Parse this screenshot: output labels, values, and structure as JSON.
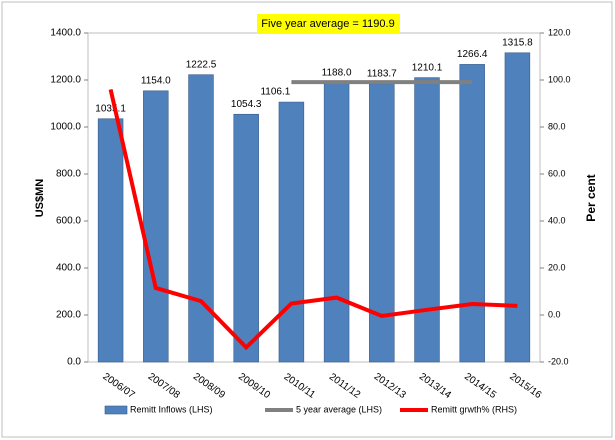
{
  "chart_data": {
    "type": "bar",
    "annotation": "Five year average = 1190.9",
    "ylabel": "US$MN",
    "y2label": "Per cent",
    "categories": [
      "2006/07",
      "2007/08",
      "2008/09",
      "2009/10",
      "2010/11",
      "2011/12",
      "2012/13",
      "2013/14",
      "2014/15",
      "2015/16"
    ],
    "series": [
      {
        "name": "Remitt Inflows (LHS)",
        "color": "#4f81bd",
        "kind": "bar",
        "values": [
          1035.1,
          1154.0,
          1222.5,
          1054.3,
          1106.1,
          1188.0,
          1183.7,
          1210.1,
          1266.4,
          1315.8
        ],
        "value_labels": [
          "1035.1",
          "1154.0",
          "1222.5",
          "1054.3",
          "1106.1",
          "1188.0",
          "1183.7",
          "1210.1",
          "1266.4",
          "1315.8"
        ]
      },
      {
        "name": "5 year average (LHS)",
        "color": "#808080",
        "kind": "line",
        "values": [
          null,
          null,
          null,
          null,
          1190.9,
          1190.9,
          1190.9,
          1190.9,
          1190.9,
          null
        ]
      },
      {
        "name": "Remitt grwth% (RHS)",
        "color": "#ff0000",
        "kind": "line",
        "axis": "y2",
        "values": [
          96,
          11.5,
          5.9,
          -13.8,
          4.9,
          7.4,
          -0.4,
          2.2,
          4.7,
          3.9
        ]
      }
    ],
    "ylim": [
      0,
      1400
    ],
    "yticks": [
      {
        "value": 0,
        "label": "0.0"
      },
      {
        "value": 200,
        "label": "200.0"
      },
      {
        "value": 400,
        "label": "400.0"
      },
      {
        "value": 600,
        "label": "600.0"
      },
      {
        "value": 800,
        "label": "800.0"
      },
      {
        "value": 1000,
        "label": "1000.0"
      },
      {
        "value": 1200,
        "label": "1200.0"
      },
      {
        "value": 1400,
        "label": "1400.0"
      }
    ],
    "y2lim": [
      -20,
      120
    ],
    "y2ticks": [
      {
        "value": -20,
        "label": "-20.0"
      },
      {
        "value": 0,
        "label": "0.0"
      },
      {
        "value": 20,
        "label": "20.0"
      },
      {
        "value": 40,
        "label": "40.0"
      },
      {
        "value": 60,
        "label": "60.0"
      },
      {
        "value": 80,
        "label": "80.0"
      },
      {
        "value": 100,
        "label": "100.0"
      },
      {
        "value": 120,
        "label": "120.0"
      }
    ],
    "legend": "bottom"
  }
}
